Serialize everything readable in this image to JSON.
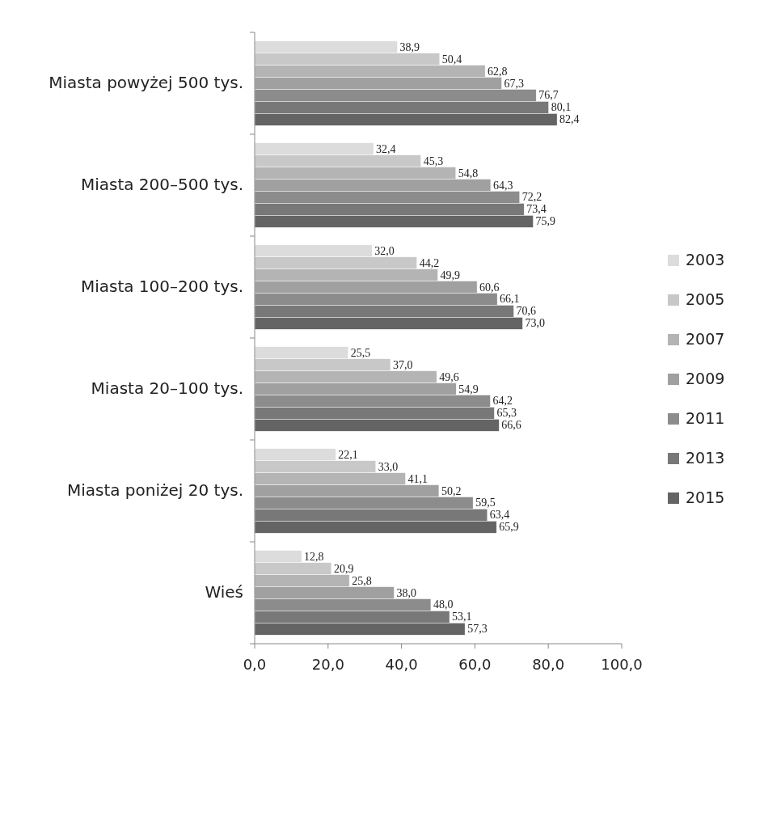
{
  "chart_data": {
    "type": "bar",
    "orientation": "horizontal",
    "categories": [
      "Miasta powyżej 500 tys.",
      "Miasta 200–500 tys.",
      "Miasta 100–200 tys.",
      "Miasta 20–100 tys.",
      "Miasta poniżej 20 tys.",
      "Wieś"
    ],
    "series": [
      {
        "name": "2003",
        "color": "#dcdcdc",
        "values": [
          38.9,
          32.4,
          32.0,
          25.5,
          22.1,
          12.8
        ],
        "value_labels": [
          "38,9",
          "32,4",
          "32,0",
          "25,5",
          "22,1",
          "12,8"
        ]
      },
      {
        "name": "2005",
        "color": "#c8c8c8",
        "values": [
          50.4,
          45.3,
          44.2,
          37.0,
          33.0,
          20.9
        ],
        "value_labels": [
          "50,4",
          "45,3",
          "44,2",
          "37,0",
          "33,0",
          "20,9"
        ]
      },
      {
        "name": "2007",
        "color": "#b4b4b4",
        "values": [
          62.8,
          54.8,
          49.9,
          49.6,
          41.1,
          25.8
        ],
        "value_labels": [
          "62,8",
          "54,8",
          "49,9",
          "49,6",
          "41,1",
          "25,8"
        ]
      },
      {
        "name": "2009",
        "color": "#a0a0a0",
        "values": [
          67.3,
          64.3,
          60.6,
          54.9,
          50.2,
          38.0
        ],
        "value_labels": [
          "67,3",
          "64,3",
          "60,6",
          "54,9",
          "50,2",
          "38,0"
        ]
      },
      {
        "name": "2011",
        "color": "#8c8c8c",
        "values": [
          76.7,
          72.2,
          66.1,
          64.2,
          59.5,
          48.0
        ],
        "value_labels": [
          "76,7",
          "72,2",
          "66,1",
          "64,2",
          "59,5",
          "48,0"
        ]
      },
      {
        "name": "2013",
        "color": "#787878",
        "values": [
          80.1,
          73.4,
          70.6,
          65.3,
          63.4,
          53.1
        ],
        "value_labels": [
          "80,1",
          "73,4",
          "70,6",
          "65,3",
          "63,4",
          "53,1"
        ]
      },
      {
        "name": "2015",
        "color": "#646464",
        "values": [
          82.4,
          75.9,
          73.0,
          66.6,
          65.9,
          57.3
        ],
        "value_labels": [
          "82,4",
          "75,9",
          "73,0",
          "66,6",
          "65,9",
          "57,3"
        ]
      }
    ],
    "xlim": [
      0,
      100
    ],
    "xticks": [
      {
        "value": 0,
        "label": "0,0"
      },
      {
        "value": 20,
        "label": "20,0"
      },
      {
        "value": 40,
        "label": "40,0"
      },
      {
        "value": 60,
        "label": "60,0"
      },
      {
        "value": 80,
        "label": "80,0"
      },
      {
        "value": 100,
        "label": "100,0"
      }
    ],
    "legend": "right"
  }
}
